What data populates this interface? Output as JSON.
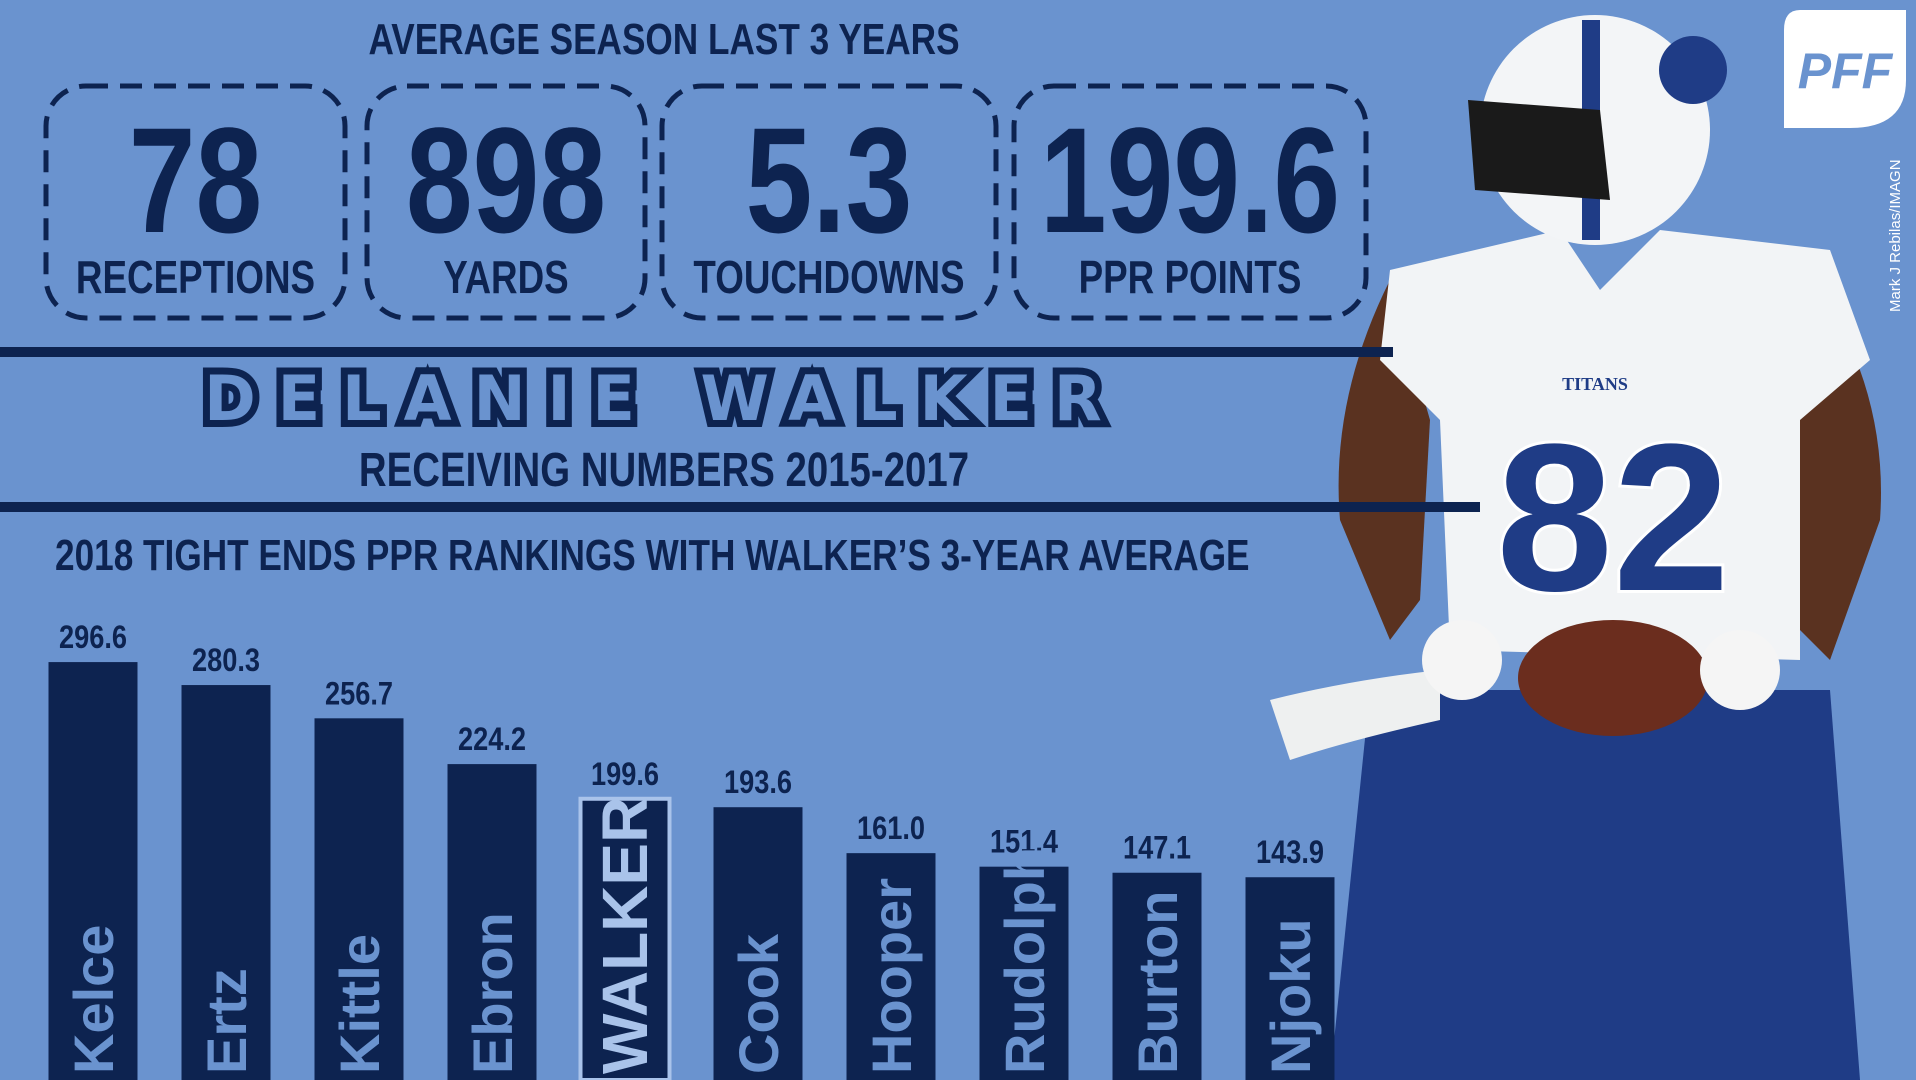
{
  "header": {
    "title": "AVERAGE SEASON LAST 3 YEARS",
    "stats": [
      {
        "value": "78",
        "label": "RECEPTIONS"
      },
      {
        "value": "898",
        "label": "YARDS"
      },
      {
        "value": "5.3",
        "label": "TOUCHDOWNS"
      },
      {
        "value": "199.6",
        "label": "PPR POINTS"
      }
    ]
  },
  "player": {
    "name": "DELANIE WALKER",
    "subtitle": "RECEIVING NUMBERS 2015-2017",
    "jersey_number": "82",
    "team": "TITANS"
  },
  "logo": "PFF",
  "credit": "Mark J Rebilas/IMAGN",
  "chart_data": {
    "type": "bar",
    "title": "2018 TIGHT ENDS PPR RANKINGS WITH WALKER’S 3-YEAR AVERAGE",
    "categories": [
      "Kelce",
      "Ertz",
      "Kittle",
      "Ebron",
      "WALKER",
      "Cook",
      "Hooper",
      "Rudolph",
      "Burton",
      "Njoku"
    ],
    "values": [
      296.6,
      280.3,
      256.7,
      224.2,
      199.6,
      193.6,
      161.0,
      151.4,
      147.1,
      143.9
    ],
    "value_labels": [
      "296.6",
      "280.3",
      "256.7",
      "224.2",
      "199.6",
      "193.6",
      "161.0",
      "151.4",
      "147.1",
      "143.9"
    ],
    "color": "#0d2350",
    "highlight": "WALKER"
  }
}
